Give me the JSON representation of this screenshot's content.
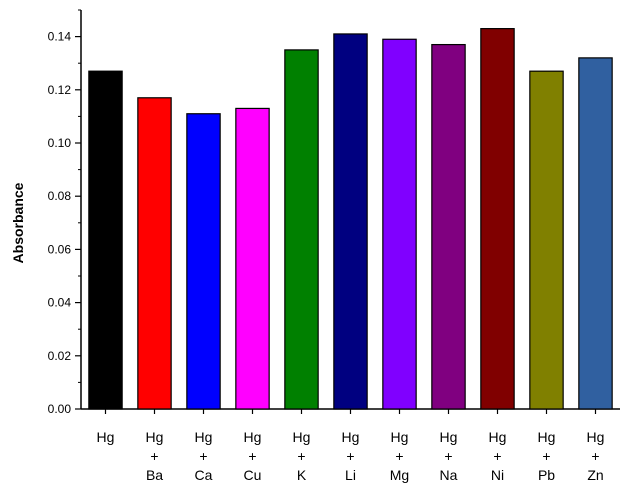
{
  "chart_data": {
    "type": "bar",
    "title": "",
    "xlabel": "",
    "ylabel": "Absorbance",
    "ylim": [
      0,
      0.15
    ],
    "yticks": [
      "0.00",
      "0.02",
      "0.04",
      "0.06",
      "0.08",
      "0.10",
      "0.12",
      "0.14"
    ],
    "grid": false,
    "legend": "none",
    "categories": [
      {
        "line1": "Hg",
        "line2": "",
        "line3": ""
      },
      {
        "line1": "Hg",
        "line2": "+",
        "line3": "Ba"
      },
      {
        "line1": "Hg",
        "line2": "+",
        "line3": "Ca"
      },
      {
        "line1": "Hg",
        "line2": "+",
        "line3": "Cu"
      },
      {
        "line1": "Hg",
        "line2": "+",
        "line3": "K"
      },
      {
        "line1": "Hg",
        "line2": "+",
        "line3": "Li"
      },
      {
        "line1": "Hg",
        "line2": "+",
        "line3": "Mg"
      },
      {
        "line1": "Hg",
        "line2": "+",
        "line3": "Na"
      },
      {
        "line1": "Hg",
        "line2": "+",
        "line3": "Ni"
      },
      {
        "line1": "Hg",
        "line2": "+",
        "line3": "Pb"
      },
      {
        "line1": "Hg",
        "line2": "+",
        "line3": "Zn"
      }
    ],
    "values": [
      0.127,
      0.117,
      0.111,
      0.113,
      0.135,
      0.141,
      0.139,
      0.137,
      0.143,
      0.127,
      0.132
    ],
    "colors": [
      "#000000",
      "#ff0000",
      "#0000ff",
      "#ff00ff",
      "#008000",
      "#000080",
      "#8000ff",
      "#800080",
      "#800000",
      "#808000",
      "#3060a0"
    ]
  }
}
